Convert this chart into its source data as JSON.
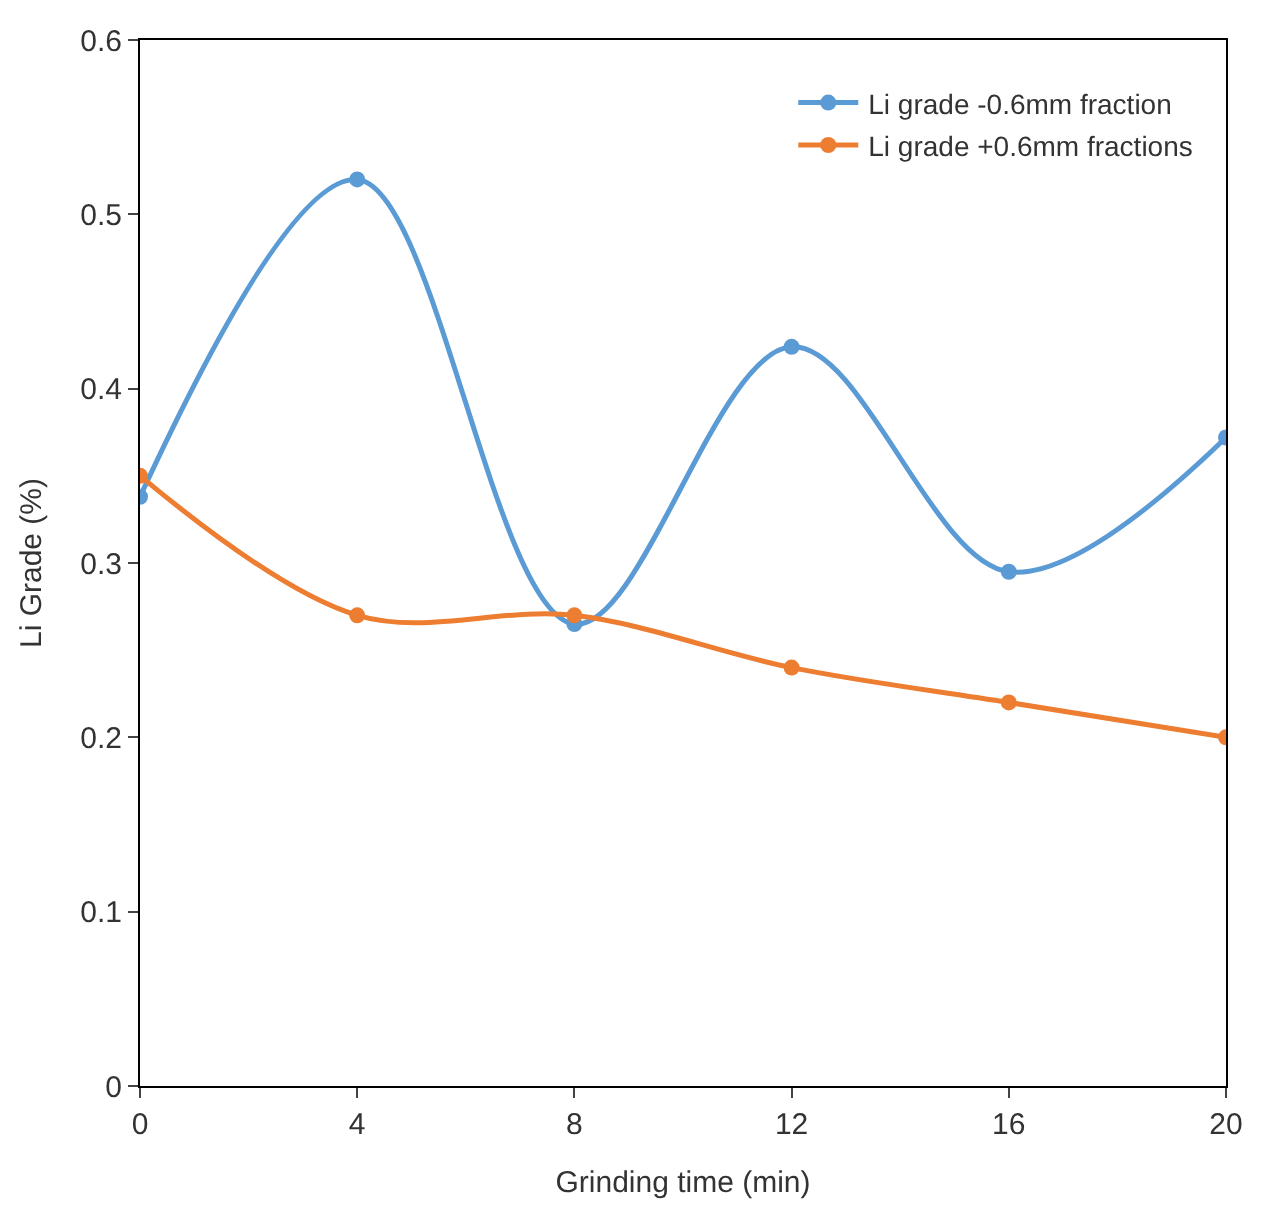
{
  "chart_data": {
    "type": "line",
    "xlabel": "Grinding time (min)",
    "ylabel": "Li Grade (%)",
    "x": [
      0,
      4,
      8,
      12,
      16,
      20
    ],
    "series": [
      {
        "name": "Li grade -0.6mm fraction",
        "color": "#5b9bd5",
        "values": [
          0.338,
          0.52,
          0.265,
          0.424,
          0.295,
          0.372
        ]
      },
      {
        "name": "Li grade +0.6mm fractions",
        "color": "#ed7d31",
        "values": [
          0.35,
          0.27,
          0.27,
          0.24,
          0.22,
          0.2
        ]
      }
    ],
    "xlim": [
      0,
      20
    ],
    "xticks": [
      0,
      4,
      8,
      12,
      16,
      20
    ],
    "ylim": [
      0,
      0.6
    ],
    "yticks": [
      {
        "value": 0,
        "label": "0"
      },
      0.1,
      0.2,
      0.3,
      0.4,
      0.5,
      0.6
    ],
    "legend": "top right",
    "marker": "circle",
    "line_style": "solid"
  }
}
